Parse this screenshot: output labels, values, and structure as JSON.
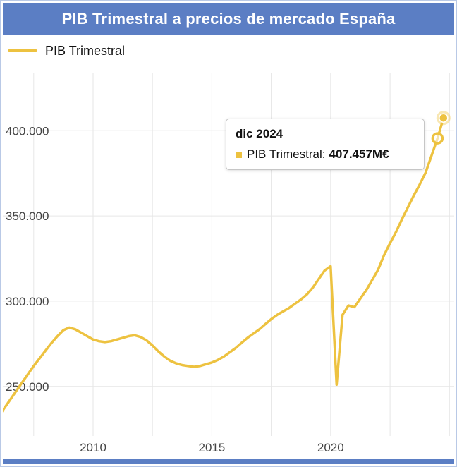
{
  "header": {
    "title": "PIB Trimestral a precios de mercado España"
  },
  "legend": {
    "label": "PIB Trimestral"
  },
  "tooltip": {
    "date": "dic 2024",
    "series_label": "PIB Trimestral:",
    "value": "407.457M€"
  },
  "colors": {
    "line": "#edc240",
    "line_halo": "rgba(237,194,64,0.40)",
    "header_bg": "#5b7ec4",
    "header_text": "#ffffff",
    "border": "#b9c9e6",
    "grid": "#e6e6e6",
    "tick_text": "#444444"
  },
  "chart_data": {
    "type": "line",
    "title": "PIB Trimestral a precios de mercado España",
    "xlabel": "",
    "ylabel": "",
    "unit": "M€",
    "grid": true,
    "legend_position": "top-left",
    "xlim": [
      2006.2,
      2025.2
    ],
    "ylim": [
      235000,
      415000
    ],
    "x_ticks": [
      {
        "t": 2010,
        "label": "2010"
      },
      {
        "t": 2015,
        "label": "2015"
      },
      {
        "t": 2020,
        "label": "2020"
      }
    ],
    "y_ticks": [
      {
        "v": 250000,
        "label": "250.000"
      },
      {
        "v": 300000,
        "label": "300.000"
      },
      {
        "v": 350000,
        "label": "350.000"
      },
      {
        "v": 400000,
        "label": "400.000"
      }
    ],
    "v_gridlines": [
      2007.5,
      2010,
      2012.5,
      2015,
      2017.5,
      2020,
      2022.5,
      2025
    ],
    "series": [
      {
        "name": "PIB Trimestral",
        "start_year": 2006,
        "points_per_year": 4,
        "values": [
          232000,
          237000,
          242000,
          247000,
          252000,
          257000,
          262000,
          266500,
          271000,
          275500,
          279500,
          283000,
          284500,
          283500,
          281500,
          279500,
          277500,
          276500,
          276000,
          276500,
          277500,
          278500,
          279500,
          280000,
          279000,
          277000,
          274000,
          270500,
          267500,
          265000,
          263500,
          262500,
          262000,
          261500,
          262000,
          263000,
          264000,
          265500,
          267500,
          270000,
          272500,
          275500,
          278500,
          281000,
          283500,
          286500,
          289500,
          292000,
          294000,
          296000,
          298500,
          301000,
          304000,
          308000,
          313000,
          318000,
          320500,
          251000,
          292000,
          297500,
          296500,
          301500,
          306500,
          312500,
          318500,
          327000,
          334000,
          340500,
          348000,
          355000,
          362000,
          368500,
          375500,
          385500,
          395500,
          407457
        ]
      }
    ],
    "last_point": {
      "label": "dic 2024",
      "value": 407457
    }
  }
}
